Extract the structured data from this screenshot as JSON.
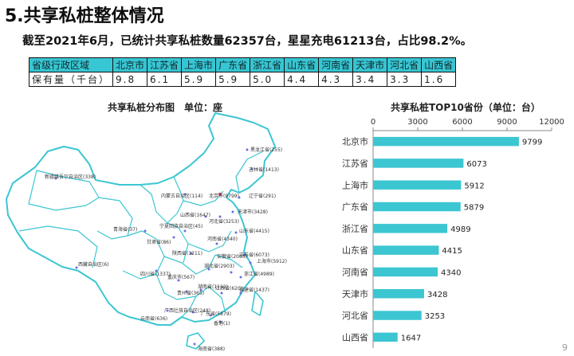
{
  "title": "5.共享私桩整体情况",
  "summary": "截至2021年6月，已统计共享私桩数量62357台，星星充电61213台，占比98.2%。",
  "table": {
    "headers": [
      "省级行政区域",
      "北京市",
      "江苏省",
      "上海市",
      "广东省",
      "浙江省",
      "山东省",
      "河南省",
      "天津市",
      "河北省",
      "山西省"
    ],
    "row_label": "保有量（千台）",
    "values": [
      "9.8",
      "6.1",
      "5.9",
      "5.9",
      "5.0",
      "4.4",
      "4.3",
      "3.4",
      "3.3",
      "1.6"
    ]
  },
  "map": {
    "title": "共享私桩分布图　单位：座",
    "labels": [
      "黑龙江省(255)",
      "吉林省(1413)",
      "新疆维吾尔自治区(338)",
      "内蒙古自治区(114)",
      "北京市(9799)",
      "辽宁省(291)",
      "天津市(3428)",
      "山西省(1647)",
      "河北省(3253)",
      "青海省(37)",
      "宁夏回族自治区(45)",
      "甘肃省(86)",
      "山东省(4415)",
      "陕西省(1211)",
      "河南省(4340)",
      "江苏省(6073)",
      "上海市(5912)",
      "西藏自治区(6)",
      "四川省(1337)",
      "湖北省(2903)",
      "安徽省(2083)",
      "浙江省(4989)",
      "重庆市(567)",
      "贵州省(365)",
      "湖南省(1112)",
      "江西省(620)",
      "福建省(1437)",
      "云南省(636)",
      "广西壮族自治区(248)",
      "广东省(5879)",
      "香港(1)",
      "海南省(388)"
    ]
  },
  "page_number": "9",
  "chart_data": {
    "type": "bar",
    "title": "共享私桩TOP10省份（单位：台）",
    "categories": [
      "北京市",
      "江苏省",
      "上海市",
      "广东省",
      "浙江省",
      "山东省",
      "河南省",
      "天津市",
      "河北省",
      "山西省"
    ],
    "values": [
      9799,
      6073,
      5912,
      5879,
      4989,
      4415,
      4340,
      3428,
      3253,
      1647
    ],
    "xlim": [
      0,
      12000
    ],
    "xticks": [
      0,
      3000,
      6000,
      9000,
      12000
    ],
    "bar_color": "#3cc6d2",
    "orientation": "horizontal"
  }
}
